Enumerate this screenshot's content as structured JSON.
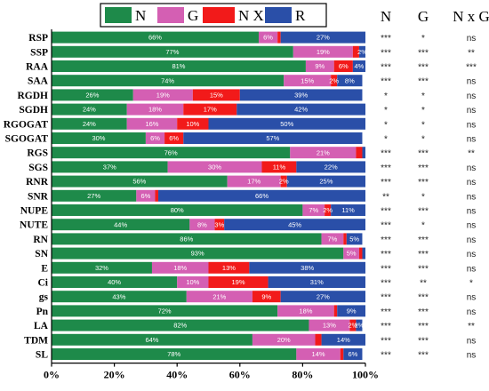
{
  "chart_data": {
    "type": "bar",
    "orientation": "horizontal",
    "stacked": true,
    "percent_stacked": true,
    "xlim": [
      0,
      100
    ],
    "x_ticks": [
      "0%",
      "20%",
      "40%",
      "60%",
      "80%",
      "100%"
    ],
    "grid": false,
    "legend_position": "top",
    "categories": [
      "RSP",
      "SSP",
      "RAA",
      "SAA",
      "RGDH",
      "SGDH",
      "RGOGAT",
      "SGOGAT",
      "RGS",
      "SGS",
      "RNR",
      "SNR",
      "NUPE",
      "NUTE",
      "RN",
      "SN",
      "E",
      "Ci",
      "gs",
      "Pn",
      "LA",
      "TDM",
      "SL"
    ],
    "series": [
      {
        "name": "N",
        "color": "#1e8a4a",
        "values": [
          66,
          77,
          81,
          74,
          26,
          24,
          24,
          30,
          76,
          37,
          56,
          27,
          80,
          44,
          86,
          93,
          32,
          40,
          43,
          72,
          82,
          64,
          78
        ]
      },
      {
        "name": "G",
        "color": "#d45fb3",
        "values": [
          6,
          19,
          9,
          15,
          19,
          18,
          16,
          6,
          21,
          30,
          17,
          6,
          7,
          8,
          7,
          5,
          18,
          10,
          21,
          18,
          13,
          20,
          14
        ]
      },
      {
        "name": "N X G",
        "color": "#f21a1a",
        "values": [
          1,
          2,
          6,
          2,
          15,
          17,
          10,
          6,
          2,
          11,
          2,
          1,
          2,
          3,
          1,
          1,
          13,
          19,
          9,
          1,
          2,
          2,
          1
        ]
      },
      {
        "name": "R",
        "color": "#2a4fa8",
        "values": [
          27,
          2,
          4,
          8,
          39,
          42,
          50,
          57,
          1,
          22,
          25,
          66,
          11,
          45,
          5,
          1,
          38,
          31,
          27,
          9,
          2,
          14,
          6
        ]
      }
    ],
    "data_labels": [
      [
        "66%",
        "6%",
        "",
        "27%"
      ],
      [
        "77%",
        "19%",
        "",
        "2%"
      ],
      [
        "81%",
        "9%",
        "6%",
        "4%"
      ],
      [
        "74%",
        "15%",
        "2%",
        "8%"
      ],
      [
        "26%",
        "19%",
        "15%",
        "39%"
      ],
      [
        "24%",
        "18%",
        "17%",
        "42%"
      ],
      [
        "24%",
        "16%",
        "10%",
        "50%"
      ],
      [
        "30%",
        "6%",
        "6%",
        "57%"
      ],
      [
        "76%",
        "21%",
        "",
        ""
      ],
      [
        "37%",
        "30%",
        "11%",
        "22%"
      ],
      [
        "56%",
        "17%",
        "2%",
        "25%"
      ],
      [
        "27%",
        "6%",
        "",
        "66%"
      ],
      [
        "80%",
        "7%",
        "2%",
        "11%"
      ],
      [
        "44%",
        "8%",
        "3%",
        "45%"
      ],
      [
        "86%",
        "7%",
        "",
        "5%"
      ],
      [
        "93%",
        "5%",
        "",
        ""
      ],
      [
        "32%",
        "18%",
        "13%",
        "38%"
      ],
      [
        "40%",
        "10%",
        "19%",
        "31%"
      ],
      [
        "43%",
        "21%",
        "9%",
        "27%"
      ],
      [
        "72%",
        "18%",
        "",
        "9%"
      ],
      [
        "82%",
        "13%",
        "2%",
        "2%"
      ],
      [
        "64%",
        "20%",
        "",
        "14%"
      ],
      [
        "78%",
        "14%",
        "",
        "6%"
      ]
    ],
    "significance": {
      "headers": [
        "N",
        "G",
        "N x G"
      ],
      "rows": [
        [
          "***",
          "*",
          "ns"
        ],
        [
          "***",
          "***",
          "**"
        ],
        [
          "***",
          "***",
          "***"
        ],
        [
          "***",
          "***",
          "ns"
        ],
        [
          "*",
          "*",
          "ns"
        ],
        [
          "*",
          "*",
          "ns"
        ],
        [
          "*",
          "*",
          "ns"
        ],
        [
          "*",
          "*",
          "ns"
        ],
        [
          "***",
          "***",
          "**"
        ],
        [
          "***",
          "***",
          "ns"
        ],
        [
          "***",
          "***",
          "ns"
        ],
        [
          "**",
          "*",
          "ns"
        ],
        [
          "***",
          "***",
          "ns"
        ],
        [
          "***",
          "*",
          "ns"
        ],
        [
          "***",
          "***",
          "ns"
        ],
        [
          "***",
          "***",
          "ns"
        ],
        [
          "***",
          "***",
          "ns"
        ],
        [
          "***",
          "**",
          "*"
        ],
        [
          "***",
          "***",
          "ns"
        ],
        [
          "***",
          "***",
          "ns"
        ],
        [
          "***",
          "***",
          "**"
        ],
        [
          "***",
          "***",
          "ns"
        ],
        [
          "***",
          "***",
          "ns"
        ]
      ]
    }
  }
}
